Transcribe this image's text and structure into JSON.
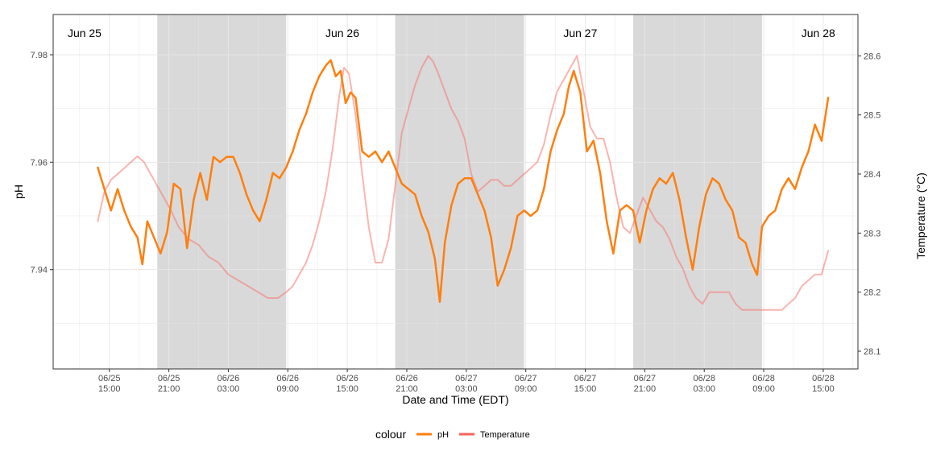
{
  "chart_data": {
    "type": "line",
    "title": "",
    "xlabel": "Date and Time (EDT)",
    "ylabel": "pH",
    "y2label": "Temperature (°C)",
    "x_ticks": [
      {
        "at": "2024-06-25T15:00",
        "label": [
          "06/25",
          "15:00"
        ]
      },
      {
        "at": "2024-06-25T21:00",
        "label": [
          "06/25",
          "21:00"
        ]
      },
      {
        "at": "2024-06-26T03:00",
        "label": [
          "06/26",
          "03:00"
        ]
      },
      {
        "at": "2024-06-26T09:00",
        "label": [
          "06/26",
          "09:00"
        ]
      },
      {
        "at": "2024-06-26T15:00",
        "label": [
          "06/26",
          "15:00"
        ]
      },
      {
        "at": "2024-06-26T21:00",
        "label": [
          "06/26",
          "21:00"
        ]
      },
      {
        "at": "2024-06-27T03:00",
        "label": [
          "06/27",
          "03:00"
        ]
      },
      {
        "at": "2024-06-27T09:00",
        "label": [
          "06/27",
          "09:00"
        ]
      },
      {
        "at": "2024-06-27T15:00",
        "label": [
          "06/27",
          "15:00"
        ]
      },
      {
        "at": "2024-06-27T21:00",
        "label": [
          "06/27",
          "21:00"
        ]
      },
      {
        "at": "2024-06-28T03:00",
        "label": [
          "06/28",
          "03:00"
        ]
      },
      {
        "at": "2024-06-28T09:00",
        "label": [
          "06/28",
          "09:00"
        ]
      },
      {
        "at": "2024-06-28T15:00",
        "label": [
          "06/28",
          "15:00"
        ]
      }
    ],
    "xlim": [
      "2024-06-25T09:20",
      "2024-06-28T18:30"
    ],
    "ylim": [
      7.9215,
      7.9875
    ],
    "y_ticks": [
      7.94,
      7.96,
      7.98
    ],
    "y_tick_labels": [
      "7.94",
      "7.96",
      "7.98"
    ],
    "y2lim": [
      28.07,
      28.67
    ],
    "y2_ticks": [
      28.1,
      28.2,
      28.3,
      28.4,
      28.5,
      28.6
    ],
    "y2_tick_labels": [
      "28.1",
      "28.2",
      "28.3",
      "28.4",
      "28.5",
      "28.6"
    ],
    "night_bands": [
      [
        "2024-06-25T19:50",
        "2024-06-26T08:50"
      ],
      [
        "2024-06-26T19:50",
        "2024-06-27T08:50"
      ],
      [
        "2024-06-27T19:50",
        "2024-06-28T08:50"
      ]
    ],
    "day_labels": [
      {
        "at": "2024-06-25T12:30",
        "text": "Jun 25"
      },
      {
        "at": "2024-06-26T14:30",
        "text": "Jun 26"
      },
      {
        "at": "2024-06-27T14:30",
        "text": "Jun 27"
      },
      {
        "at": "2024-06-28T14:30",
        "text": "Jun 28"
      }
    ],
    "grid": true,
    "legend": {
      "position": "bottom",
      "title": "colour",
      "entries": [
        "pH",
        "Temperature"
      ]
    },
    "series": [
      {
        "name": "pH",
        "axis": "left",
        "color": "#ff7f0e",
        "points": [
          [
            "2024-06-25T13:50",
            7.959
          ],
          [
            "2024-06-25T14:30",
            7.955
          ],
          [
            "2024-06-25T15:10",
            7.951
          ],
          [
            "2024-06-25T15:50",
            7.955
          ],
          [
            "2024-06-25T16:30",
            7.951
          ],
          [
            "2024-06-25T17:10",
            7.948
          ],
          [
            "2024-06-25T17:50",
            7.946
          ],
          [
            "2024-06-25T18:20",
            7.941
          ],
          [
            "2024-06-25T18:50",
            7.949
          ],
          [
            "2024-06-25T19:30",
            7.946
          ],
          [
            "2024-06-25T20:10",
            7.943
          ],
          [
            "2024-06-25T20:50",
            7.947
          ],
          [
            "2024-06-25T21:30",
            7.956
          ],
          [
            "2024-06-25T22:10",
            7.955
          ],
          [
            "2024-06-25T22:50",
            7.944
          ],
          [
            "2024-06-25T23:30",
            7.953
          ],
          [
            "2024-06-26T00:10",
            7.958
          ],
          [
            "2024-06-26T00:50",
            7.953
          ],
          [
            "2024-06-26T01:30",
            7.961
          ],
          [
            "2024-06-26T02:10",
            7.96
          ],
          [
            "2024-06-26T02:50",
            7.961
          ],
          [
            "2024-06-26T03:30",
            7.961
          ],
          [
            "2024-06-26T04:10",
            7.958
          ],
          [
            "2024-06-26T04:50",
            7.954
          ],
          [
            "2024-06-26T05:30",
            7.951
          ],
          [
            "2024-06-26T06:10",
            7.949
          ],
          [
            "2024-06-26T06:50",
            7.953
          ],
          [
            "2024-06-26T07:30",
            7.958
          ],
          [
            "2024-06-26T08:10",
            7.957
          ],
          [
            "2024-06-26T08:50",
            7.959
          ],
          [
            "2024-06-26T09:30",
            7.962
          ],
          [
            "2024-06-26T10:10",
            7.966
          ],
          [
            "2024-06-26T10:50",
            7.969
          ],
          [
            "2024-06-26T11:30",
            7.973
          ],
          [
            "2024-06-26T12:10",
            7.976
          ],
          [
            "2024-06-26T12:50",
            7.978
          ],
          [
            "2024-06-26T13:20",
            7.979
          ],
          [
            "2024-06-26T13:50",
            7.976
          ],
          [
            "2024-06-26T14:20",
            7.977
          ],
          [
            "2024-06-26T14:50",
            7.971
          ],
          [
            "2024-06-26T15:20",
            7.973
          ],
          [
            "2024-06-26T15:50",
            7.972
          ],
          [
            "2024-06-26T16:30",
            7.962
          ],
          [
            "2024-06-26T17:10",
            7.961
          ],
          [
            "2024-06-26T17:50",
            7.962
          ],
          [
            "2024-06-26T18:30",
            7.96
          ],
          [
            "2024-06-26T19:10",
            7.962
          ],
          [
            "2024-06-26T19:50",
            7.959
          ],
          [
            "2024-06-26T20:30",
            7.956
          ],
          [
            "2024-06-26T21:10",
            7.955
          ],
          [
            "2024-06-26T21:50",
            7.954
          ],
          [
            "2024-06-26T22:30",
            7.95
          ],
          [
            "2024-06-26T23:10",
            7.947
          ],
          [
            "2024-06-26T23:50",
            7.942
          ],
          [
            "2024-06-27T00:20",
            7.934
          ],
          [
            "2024-06-27T00:50",
            7.945
          ],
          [
            "2024-06-27T01:30",
            7.952
          ],
          [
            "2024-06-27T02:10",
            7.956
          ],
          [
            "2024-06-27T02:50",
            7.957
          ],
          [
            "2024-06-27T03:30",
            7.957
          ],
          [
            "2024-06-27T04:10",
            7.954
          ],
          [
            "2024-06-27T04:50",
            7.951
          ],
          [
            "2024-06-27T05:30",
            7.946
          ],
          [
            "2024-06-27T06:10",
            7.937
          ],
          [
            "2024-06-27T06:50",
            7.94
          ],
          [
            "2024-06-27T07:30",
            7.944
          ],
          [
            "2024-06-27T08:10",
            7.95
          ],
          [
            "2024-06-27T08:50",
            7.951
          ],
          [
            "2024-06-27T09:30",
            7.95
          ],
          [
            "2024-06-27T10:10",
            7.951
          ],
          [
            "2024-06-27T10:50",
            7.955
          ],
          [
            "2024-06-27T11:30",
            7.962
          ],
          [
            "2024-06-27T12:10",
            7.966
          ],
          [
            "2024-06-27T12:50",
            7.969
          ],
          [
            "2024-06-27T13:20",
            7.974
          ],
          [
            "2024-06-27T13:50",
            7.977
          ],
          [
            "2024-06-27T14:30",
            7.973
          ],
          [
            "2024-06-27T15:10",
            7.962
          ],
          [
            "2024-06-27T15:50",
            7.964
          ],
          [
            "2024-06-27T16:30",
            7.958
          ],
          [
            "2024-06-27T17:10",
            7.949
          ],
          [
            "2024-06-27T17:50",
            7.943
          ],
          [
            "2024-06-27T18:30",
            7.951
          ],
          [
            "2024-06-27T19:10",
            7.952
          ],
          [
            "2024-06-27T19:50",
            7.951
          ],
          [
            "2024-06-27T20:30",
            7.945
          ],
          [
            "2024-06-27T21:10",
            7.951
          ],
          [
            "2024-06-27T21:50",
            7.955
          ],
          [
            "2024-06-27T22:30",
            7.957
          ],
          [
            "2024-06-27T23:10",
            7.956
          ],
          [
            "2024-06-27T23:50",
            7.958
          ],
          [
            "2024-06-28T00:30",
            7.953
          ],
          [
            "2024-06-28T01:10",
            7.946
          ],
          [
            "2024-06-28T01:50",
            7.94
          ],
          [
            "2024-06-28T02:30",
            7.948
          ],
          [
            "2024-06-28T03:10",
            7.954
          ],
          [
            "2024-06-28T03:50",
            7.957
          ],
          [
            "2024-06-28T04:30",
            7.956
          ],
          [
            "2024-06-28T05:10",
            7.953
          ],
          [
            "2024-06-28T05:50",
            7.951
          ],
          [
            "2024-06-28T06:30",
            7.946
          ],
          [
            "2024-06-28T07:10",
            7.945
          ],
          [
            "2024-06-28T07:50",
            7.941
          ],
          [
            "2024-06-28T08:20",
            7.939
          ],
          [
            "2024-06-28T08:50",
            7.948
          ],
          [
            "2024-06-28T09:30",
            7.95
          ],
          [
            "2024-06-28T10:10",
            7.951
          ],
          [
            "2024-06-28T10:50",
            7.955
          ],
          [
            "2024-06-28T11:30",
            7.957
          ],
          [
            "2024-06-28T12:10",
            7.955
          ],
          [
            "2024-06-28T12:50",
            7.959
          ],
          [
            "2024-06-28T13:30",
            7.962
          ],
          [
            "2024-06-28T14:10",
            7.967
          ],
          [
            "2024-06-28T14:50",
            7.964
          ],
          [
            "2024-06-28T15:30",
            7.972
          ]
        ]
      },
      {
        "name": "Temperature",
        "axis": "right",
        "color": "#f8766d",
        "points": [
          [
            "2024-06-25T13:50",
            28.32
          ],
          [
            "2024-06-25T14:30",
            28.37
          ],
          [
            "2024-06-25T15:10",
            28.39
          ],
          [
            "2024-06-25T15:50",
            28.4
          ],
          [
            "2024-06-25T16:30",
            28.41
          ],
          [
            "2024-06-25T17:10",
            28.42
          ],
          [
            "2024-06-25T17:50",
            28.43
          ],
          [
            "2024-06-25T18:30",
            28.42
          ],
          [
            "2024-06-25T19:10",
            28.4
          ],
          [
            "2024-06-25T19:50",
            28.38
          ],
          [
            "2024-06-25T20:30",
            28.36
          ],
          [
            "2024-06-25T21:10",
            28.34
          ],
          [
            "2024-06-25T22:00",
            28.31
          ],
          [
            "2024-06-25T23:00",
            28.29
          ],
          [
            "2024-06-26T00:00",
            28.28
          ],
          [
            "2024-06-26T01:00",
            28.26
          ],
          [
            "2024-06-26T02:00",
            28.25
          ],
          [
            "2024-06-26T03:00",
            28.23
          ],
          [
            "2024-06-26T04:00",
            28.22
          ],
          [
            "2024-06-26T05:00",
            28.21
          ],
          [
            "2024-06-26T06:00",
            28.2
          ],
          [
            "2024-06-26T07:00",
            28.19
          ],
          [
            "2024-06-26T08:00",
            28.19
          ],
          [
            "2024-06-26T08:50",
            28.2
          ],
          [
            "2024-06-26T09:30",
            28.21
          ],
          [
            "2024-06-26T10:10",
            28.23
          ],
          [
            "2024-06-26T10:50",
            28.25
          ],
          [
            "2024-06-26T11:30",
            28.28
          ],
          [
            "2024-06-26T12:10",
            28.32
          ],
          [
            "2024-06-26T12:50",
            28.37
          ],
          [
            "2024-06-26T13:30",
            28.44
          ],
          [
            "2024-06-26T14:10",
            28.53
          ],
          [
            "2024-06-26T14:40",
            28.58
          ],
          [
            "2024-06-26T15:10",
            28.57
          ],
          [
            "2024-06-26T15:50",
            28.5
          ],
          [
            "2024-06-26T16:30",
            28.4
          ],
          [
            "2024-06-26T17:10",
            28.31
          ],
          [
            "2024-06-26T17:50",
            28.25
          ],
          [
            "2024-06-26T18:30",
            28.25
          ],
          [
            "2024-06-26T19:10",
            28.29
          ],
          [
            "2024-06-26T19:50",
            28.38
          ],
          [
            "2024-06-26T20:30",
            28.47
          ],
          [
            "2024-06-26T21:10",
            28.51
          ],
          [
            "2024-06-26T21:50",
            28.55
          ],
          [
            "2024-06-26T22:30",
            28.58
          ],
          [
            "2024-06-26T23:10",
            28.6
          ],
          [
            "2024-06-26T23:40",
            28.59
          ],
          [
            "2024-06-27T00:10",
            28.57
          ],
          [
            "2024-06-27T00:50",
            28.54
          ],
          [
            "2024-06-27T01:30",
            28.51
          ],
          [
            "2024-06-27T02:10",
            28.49
          ],
          [
            "2024-06-27T02:50",
            28.46
          ],
          [
            "2024-06-27T03:30",
            28.4
          ],
          [
            "2024-06-27T04:10",
            28.37
          ],
          [
            "2024-06-27T04:50",
            28.38
          ],
          [
            "2024-06-27T05:30",
            28.39
          ],
          [
            "2024-06-27T06:10",
            28.39
          ],
          [
            "2024-06-27T06:50",
            28.38
          ],
          [
            "2024-06-27T07:30",
            28.38
          ],
          [
            "2024-06-27T08:10",
            28.39
          ],
          [
            "2024-06-27T08:50",
            28.4
          ],
          [
            "2024-06-27T09:30",
            28.41
          ],
          [
            "2024-06-27T10:10",
            28.42
          ],
          [
            "2024-06-27T10:50",
            28.45
          ],
          [
            "2024-06-27T11:30",
            28.5
          ],
          [
            "2024-06-27T12:10",
            28.54
          ],
          [
            "2024-06-27T12:50",
            28.56
          ],
          [
            "2024-06-27T13:30",
            28.58
          ],
          [
            "2024-06-27T14:10",
            28.6
          ],
          [
            "2024-06-27T14:50",
            28.54
          ],
          [
            "2024-06-27T15:30",
            28.48
          ],
          [
            "2024-06-27T16:10",
            28.46
          ],
          [
            "2024-06-27T16:50",
            28.46
          ],
          [
            "2024-06-27T17:30",
            28.42
          ],
          [
            "2024-06-27T18:10",
            28.36
          ],
          [
            "2024-06-27T18:50",
            28.31
          ],
          [
            "2024-06-27T19:30",
            28.3
          ],
          [
            "2024-06-27T20:10",
            28.33
          ],
          [
            "2024-06-27T20:50",
            28.36
          ],
          [
            "2024-06-27T21:30",
            28.34
          ],
          [
            "2024-06-27T22:10",
            28.32
          ],
          [
            "2024-06-27T22:50",
            28.31
          ],
          [
            "2024-06-27T23:30",
            28.29
          ],
          [
            "2024-06-28T00:10",
            28.26
          ],
          [
            "2024-06-28T00:50",
            28.24
          ],
          [
            "2024-06-28T01:30",
            28.21
          ],
          [
            "2024-06-28T02:10",
            28.19
          ],
          [
            "2024-06-28T02:50",
            28.18
          ],
          [
            "2024-06-28T03:30",
            28.2
          ],
          [
            "2024-06-28T04:10",
            28.2
          ],
          [
            "2024-06-28T04:50",
            28.2
          ],
          [
            "2024-06-28T05:30",
            28.2
          ],
          [
            "2024-06-28T06:10",
            28.18
          ],
          [
            "2024-06-28T06:50",
            28.17
          ],
          [
            "2024-06-28T07:30",
            28.17
          ],
          [
            "2024-06-28T08:10",
            28.17
          ],
          [
            "2024-06-28T08:50",
            28.17
          ],
          [
            "2024-06-28T09:30",
            28.17
          ],
          [
            "2024-06-28T10:10",
            28.17
          ],
          [
            "2024-06-28T10:50",
            28.17
          ],
          [
            "2024-06-28T11:30",
            28.18
          ],
          [
            "2024-06-28T12:10",
            28.19
          ],
          [
            "2024-06-28T12:50",
            28.21
          ],
          [
            "2024-06-28T13:30",
            28.22
          ],
          [
            "2024-06-28T14:10",
            28.23
          ],
          [
            "2024-06-28T14:50",
            28.23
          ],
          [
            "2024-06-28T15:30",
            28.27
          ]
        ]
      }
    ]
  }
}
